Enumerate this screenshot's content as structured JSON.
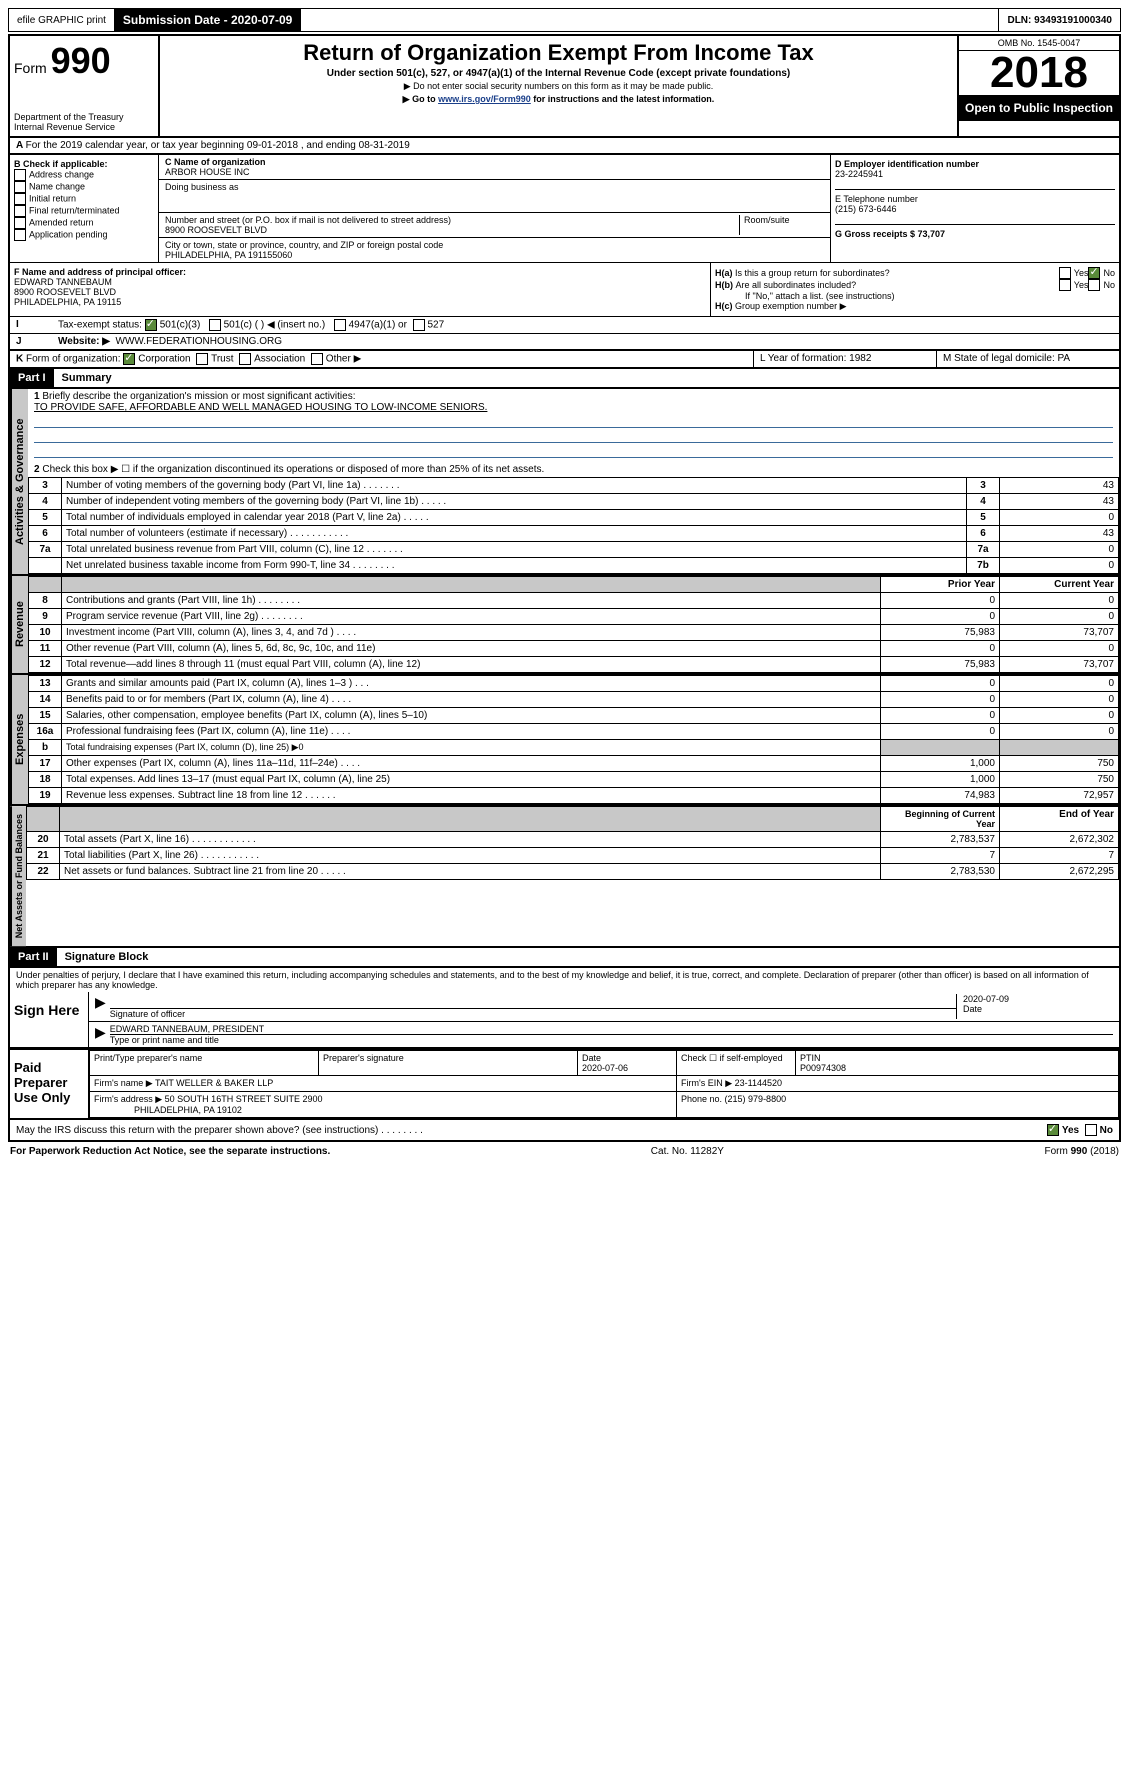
{
  "top": {
    "efile": "efile GRAPHIC print",
    "submission_label": "Submission Date - 2020-07-09",
    "dln": "DLN: 93493191000340"
  },
  "header": {
    "form_label": "Form",
    "form_no": "990",
    "dept": "Department of the Treasury\nInternal Revenue Service",
    "title": "Return of Organization Exempt From Income Tax",
    "sub": "Under section 501(c), 527, or 4947(a)(1) of the Internal Revenue Code (except private foundations)",
    "note1": "▶ Do not enter social security numbers on this form as it may be made public.",
    "note2_pre": "▶ Go to ",
    "note2_link": "www.irs.gov/Form990",
    "note2_post": " for instructions and the latest information.",
    "omb": "OMB No. 1545-0047",
    "year": "2018",
    "open": "Open to Public Inspection"
  },
  "A": {
    "text": "For the 2019 calendar year, or tax year beginning 09-01-2018   , and ending 08-31-2019"
  },
  "B": {
    "label": "Check if applicable:",
    "opts": [
      "Address change",
      "Name change",
      "Initial return",
      "Final return/terminated",
      "Amended return",
      "Application pending"
    ]
  },
  "C": {
    "name_label": "C Name of organization",
    "name": "ARBOR HOUSE INC",
    "dba_label": "Doing business as",
    "addr_label": "Number and street (or P.O. box if mail is not delivered to street address)",
    "room_label": "Room/suite",
    "addr": "8900 ROOSEVELT BLVD",
    "city_label": "City or town, state or province, country, and ZIP or foreign postal code",
    "city": "PHILADELPHIA, PA  191155060"
  },
  "D": {
    "label": "D Employer identification number",
    "val": "23-2245941"
  },
  "E": {
    "label": "E Telephone number",
    "val": "(215) 673-6446"
  },
  "G": {
    "label": "G Gross receipts $ 73,707"
  },
  "F": {
    "label": "F  Name and address of principal officer:",
    "name": "EDWARD TANNEBAUM",
    "addr1": "8900 ROOSEVELT BLVD",
    "addr2": "PHILADELPHIA, PA  19115"
  },
  "H": {
    "a": "Is this a group return for subordinates?",
    "b": "Are all subordinates included?",
    "b_note": "If \"No,\" attach a list. (see instructions)",
    "c": "Group exemption number ▶",
    "yes": "Yes",
    "no": "No"
  },
  "I": {
    "label": "Tax-exempt status:",
    "o1": "501(c)(3)",
    "o2": "501(c) (   ) ◀ (insert no.)",
    "o3": "4947(a)(1) or",
    "o4": "527"
  },
  "J": {
    "label": "Website: ▶",
    "val": "WWW.FEDERATIONHOUSING.ORG"
  },
  "K": {
    "label": "Form of organization:",
    "o1": "Corporation",
    "o2": "Trust",
    "o3": "Association",
    "o4": "Other ▶"
  },
  "L": {
    "label": "L Year of formation: 1982"
  },
  "M": {
    "label": "M State of legal domicile: PA"
  },
  "partI": {
    "tag": "Part I",
    "title": "Summary"
  },
  "summary": {
    "l1": "Briefly describe the organization's mission or most significant activities:",
    "mission": "TO PROVIDE SAFE, AFFORDABLE AND WELL MANAGED HOUSING TO LOW-INCOME SENIORS.",
    "l2": "Check this box ▶ ☐  if the organization discontinued its operations or disposed of more than 25% of its net assets.",
    "rows_gov": [
      {
        "n": "3",
        "t": "Number of voting members of the governing body (Part VI, line 1a)   .    .    .    .    .    .    .",
        "box": "3",
        "v": "43"
      },
      {
        "n": "4",
        "t": "Number of independent voting members of the governing body (Part VI, line 1b)   .    .    .    .    .",
        "box": "4",
        "v": "43"
      },
      {
        "n": "5",
        "t": "Total number of individuals employed in calendar year 2018 (Part V, line 2a)   .    .    .    .    .",
        "box": "5",
        "v": "0"
      },
      {
        "n": "6",
        "t": "Total number of volunteers (estimate if necessary)   .    .    .    .    .    .    .    .    .    .    .",
        "box": "6",
        "v": "43"
      },
      {
        "n": "7a",
        "t": "Total unrelated business revenue from Part VIII, column (C), line 12   .    .    .    .    .    .    .",
        "box": "7a",
        "v": "0"
      },
      {
        "n": "",
        "t": "Net unrelated business taxable income from Form 990-T, line 34   .    .    .    .    .    .    .    .",
        "box": "7b",
        "v": "0"
      }
    ],
    "col_prior": "Prior Year",
    "col_current": "Current Year",
    "rows_rev": [
      {
        "n": "8",
        "t": "Contributions and grants (Part VIII, line 1h)   .    .    .    .    .    .    .    .",
        "p": "0",
        "c": "0"
      },
      {
        "n": "9",
        "t": "Program service revenue (Part VIII, line 2g)   .    .    .    .    .    .    .    .",
        "p": "0",
        "c": "0"
      },
      {
        "n": "10",
        "t": "Investment income (Part VIII, column (A), lines 3, 4, and 7d )   .    .    .    .",
        "p": "75,983",
        "c": "73,707"
      },
      {
        "n": "11",
        "t": "Other revenue (Part VIII, column (A), lines 5, 6d, 8c, 9c, 10c, and 11e)",
        "p": "0",
        "c": "0"
      },
      {
        "n": "12",
        "t": "Total revenue—add lines 8 through 11 (must equal Part VIII, column (A), line 12)",
        "p": "75,983",
        "c": "73,707"
      }
    ],
    "rows_exp": [
      {
        "n": "13",
        "t": "Grants and similar amounts paid (Part IX, column (A), lines 1–3 )   .    .    .",
        "p": "0",
        "c": "0"
      },
      {
        "n": "14",
        "t": "Benefits paid to or for members (Part IX, column (A), line 4)   .    .    .    .",
        "p": "0",
        "c": "0"
      },
      {
        "n": "15",
        "t": "Salaries, other compensation, employee benefits (Part IX, column (A), lines 5–10)",
        "p": "0",
        "c": "0"
      },
      {
        "n": "16a",
        "t": "Professional fundraising fees (Part IX, column (A), line 11e)   .    .    .    .",
        "p": "0",
        "c": "0"
      },
      {
        "n": "b",
        "t": "Total fundraising expenses (Part IX, column (D), line 25) ▶0",
        "p": "",
        "c": "",
        "shade": true
      },
      {
        "n": "17",
        "t": "Other expenses (Part IX, column (A), lines 11a–11d, 11f–24e)   .    .    .    .",
        "p": "1,000",
        "c": "750"
      },
      {
        "n": "18",
        "t": "Total expenses. Add lines 13–17 (must equal Part IX, column (A), line 25)",
        "p": "1,000",
        "c": "750"
      },
      {
        "n": "19",
        "t": "Revenue less expenses. Subtract line 18 from line 12   .    .    .    .    .    .",
        "p": "74,983",
        "c": "72,957"
      }
    ],
    "col_begin": "Beginning of Current Year",
    "col_end": "End of Year",
    "rows_net": [
      {
        "n": "20",
        "t": "Total assets (Part X, line 16)   .    .    .    .    .    .    .    .    .    .    .    .",
        "p": "2,783,537",
        "c": "2,672,302"
      },
      {
        "n": "21",
        "t": "Total liabilities (Part X, line 26)   .    .    .    .    .    .    .    .    .    .    .",
        "p": "7",
        "c": "7"
      },
      {
        "n": "22",
        "t": "Net assets or fund balances. Subtract line 21 from line 20   .    .    .    .    .",
        "p": "2,783,530",
        "c": "2,672,295"
      }
    ]
  },
  "vtabs": {
    "gov": "Activities & Governance",
    "rev": "Revenue",
    "exp": "Expenses",
    "net": "Net Assets or Fund Balances"
  },
  "partII": {
    "tag": "Part II",
    "title": "Signature Block"
  },
  "perjury": "Under penalties of perjury, I declare that I have examined this return, including accompanying schedules and statements, and to the best of my knowledge and belief, it is true, correct, and complete. Declaration of preparer (other than officer) is based on all information of which preparer has any knowledge.",
  "sign": {
    "here": "Sign Here",
    "sig_label": "Signature of officer",
    "date": "2020-07-09",
    "date_label": "Date",
    "name": "EDWARD TANNEBAUM, PRESIDENT",
    "name_label": "Type or print name and title"
  },
  "paid": {
    "label": "Paid Preparer Use Only",
    "pname_label": "Print/Type preparer's name",
    "psig_label": "Preparer's signature",
    "pdate_label": "Date",
    "pdate": "2020-07-06",
    "check_label": "Check ☐ if self-employed",
    "ptin_label": "PTIN",
    "ptin": "P00974308",
    "firm_label": "Firm's name    ▶",
    "firm": "TAIT WELLER & BAKER LLP",
    "ein_label": "Firm's EIN ▶",
    "ein": "23-1144520",
    "addr_label": "Firm's address ▶",
    "addr1": "50 SOUTH 16TH STREET SUITE 2900",
    "addr2": "PHILADELPHIA, PA  19102",
    "phone_label": "Phone no. (215) 979-8800"
  },
  "discuss": "May the IRS discuss this return with the preparer shown above? (see instructions)   .    .    .    .    .    .    .    .",
  "footer": {
    "pra": "For Paperwork Reduction Act Notice, see the separate instructions.",
    "cat": "Cat. No. 11282Y",
    "form": "Form 990 (2018)"
  }
}
